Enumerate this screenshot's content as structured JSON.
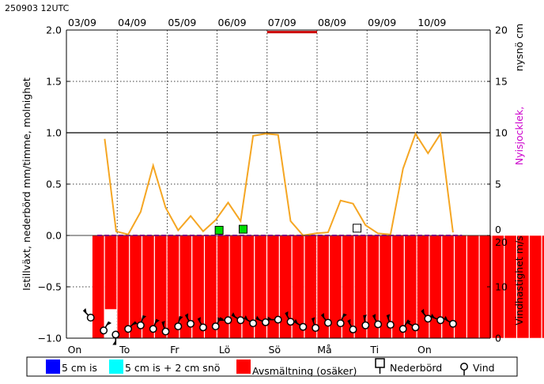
{
  "header": {
    "run_label": "250903 12UTC"
  },
  "colors": {
    "precip": "#ff0000",
    "melt_bar": "#ff0000",
    "ice_line": "#f5a623",
    "snow_line": "#cc00cc",
    "blue": "#0000ff",
    "cyan": "#00ffff",
    "precip_marker_green": "#00dd00"
  },
  "chart_data": {
    "type": "line",
    "top_dates": [
      "03/09",
      "04/09",
      "05/09",
      "06/09",
      "07/09",
      "08/09",
      "09/09",
      "10/09"
    ],
    "weekdays": [
      "On",
      "To",
      "Fr",
      "Lö",
      "Sö",
      "Må",
      "Ti",
      "On"
    ],
    "left_axis": {
      "label": "Istillväxt, nederbörd mm/timme, molnighet",
      "ticks": [
        "2.0",
        "1.5",
        "1.0",
        "0.5",
        "0.0",
        "−0.5",
        "−1.0"
      ],
      "range": [
        -1.0,
        2.0
      ]
    },
    "right_axis_upper": {
      "label_black": "nysnö cm",
      "label_magenta": "Nyisjocklek,",
      "ticks": [
        "20",
        "15",
        "10",
        "5",
        "0"
      ],
      "range": [
        0,
        20
      ]
    },
    "right_axis_lower": {
      "label": "Vindhastighet m/s",
      "ticks": [
        "20",
        "10",
        "0"
      ],
      "range": [
        0,
        20
      ]
    },
    "ice_growth": {
      "x": [
        0.75,
        0.98,
        1.22,
        1.47,
        1.72,
        1.97,
        2.22,
        2.47,
        2.72,
        2.97,
        3.22,
        3.47,
        3.72,
        3.97,
        4.22,
        4.47,
        4.72,
        4.97,
        5.22,
        5.47,
        5.72,
        5.97,
        6.22,
        6.47,
        6.72,
        6.97,
        7.22,
        7.47,
        7.72
      ],
      "y": [
        0.94,
        0.04,
        0.01,
        0.23,
        0.68,
        0.27,
        0.05,
        0.19,
        0.04,
        0.15,
        0.32,
        0.14,
        0.97,
        0.99,
        0.98,
        0.14,
        0.0,
        0.02,
        0.03,
        0.34,
        0.31,
        0.1,
        0.02,
        0.01,
        0.65,
        0.99,
        0.8,
        0.99,
        0.03
      ]
    },
    "precip_marks": [
      {
        "x": 3.04,
        "y": 0.02,
        "color": "green"
      },
      {
        "x": 3.52,
        "y": 0.03,
        "color": "green"
      },
      {
        "x": 5.8,
        "y": 0.04,
        "color": "white"
      }
    ],
    "precip_bar": {
      "x0": 4.0,
      "x1": 5.0,
      "y": 1.98
    },
    "melt": {
      "x_start": 0.5,
      "step": 0.25,
      "values": [
        1.0,
        0.72,
        1.0,
        1.0,
        1.0,
        1.0,
        1.0,
        1.0,
        1.0,
        1.0,
        1.0,
        1.0,
        1.0,
        1.0,
        1.0,
        1.0,
        1.0,
        1.0,
        1.0,
        1.0,
        1.0,
        1.0,
        1.0,
        1.0,
        1.0,
        1.0,
        1.0,
        1.0,
        1.0,
        1.0,
        1.0,
        1.0,
        1.0,
        1.0,
        1.0,
        1.0,
        1.0,
        1.0
      ]
    },
    "wind": {
      "x": [
        0.47,
        0.73,
        0.97,
        1.22,
        1.47,
        1.72,
        1.97,
        2.22,
        2.47,
        2.72,
        2.97,
        3.22,
        3.47,
        3.72,
        3.97,
        4.22,
        4.47,
        4.72,
        4.97,
        5.22,
        5.47,
        5.72,
        5.97,
        6.22,
        6.47,
        6.72,
        6.97,
        7.22,
        7.47,
        7.72
      ],
      "speed": [
        4.0,
        1.5,
        0.7,
        1.8,
        2.5,
        1.8,
        1.3,
        2.3,
        2.8,
        2.1,
        2.3,
        3.5,
        3.5,
        2.9,
        3.1,
        3.6,
        3.2,
        2.2,
        2.0,
        3.0,
        2.9,
        1.7,
        2.5,
        2.7,
        2.6,
        1.8,
        2.1,
        3.8,
        3.5,
        2.8
      ],
      "dir": [
        -45,
        30,
        180,
        45,
        15,
        20,
        340,
        10,
        330,
        330,
        30,
        270,
        300,
        300,
        290,
        270,
        330,
        300,
        340,
        320,
        20,
        330,
        350,
        330,
        340,
        30,
        300,
        320,
        290,
        300
      ]
    },
    "legend": [
      {
        "label": "5 cm is",
        "kind": "swatch",
        "color": "#0000ff"
      },
      {
        "label": "5 cm is + 2 cm snö",
        "kind": "swatch",
        "color": "#00ffff"
      },
      {
        "label": "Avsmältning (osäker)",
        "kind": "swatch",
        "color": "#ff0000"
      },
      {
        "label": "Nederbörd",
        "kind": "precip-icon"
      },
      {
        "label": "Vind",
        "kind": "wind-icon"
      }
    ]
  }
}
